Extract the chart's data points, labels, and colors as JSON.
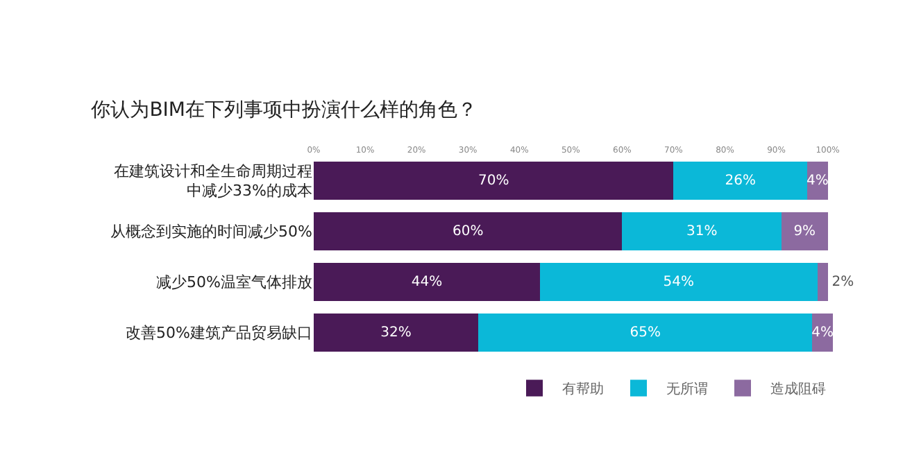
{
  "chart_data": {
    "type": "bar",
    "orientation": "horizontal",
    "stacked": true,
    "title": "你认为BIM在下列事项中扮演什么样的角色？",
    "categories": [
      "在建筑设计和全生命周期过程中减少33%的成本",
      "从概念到实施的时间减少50%",
      "减少50%温室气体排放",
      "改善50%建筑产品贸易缺口"
    ],
    "series": [
      {
        "name": "有帮助",
        "color": "#4a1a57",
        "values": [
          70,
          60,
          44,
          32
        ],
        "value_labels": [
          "70%",
          "60%",
          "44%",
          "32%"
        ]
      },
      {
        "name": "无所谓",
        "color": "#0bb8d8",
        "values": [
          26,
          31,
          54,
          65
        ],
        "value_labels": [
          "26%",
          "31%",
          "54%",
          "65%"
        ]
      },
      {
        "name": "造成阻碍",
        "color": "#8c6aa0",
        "values": [
          4,
          9,
          2,
          4
        ],
        "value_labels": [
          "4%",
          "9%",
          "2%",
          "4%"
        ]
      }
    ],
    "xlim": [
      0,
      101
    ],
    "xticks": [
      {
        "value": 0,
        "label": "0%"
      },
      {
        "value": 10,
        "label": "10%"
      },
      {
        "value": 20,
        "label": "20%"
      },
      {
        "value": 30,
        "label": "30%"
      },
      {
        "value": 40,
        "label": "40%"
      },
      {
        "value": 50,
        "label": "50%"
      },
      {
        "value": 60,
        "label": "60%"
      },
      {
        "value": 70,
        "label": "70%"
      },
      {
        "value": 80,
        "label": "80%"
      },
      {
        "value": 90,
        "label": "90%"
      },
      {
        "value": 100,
        "label": "100%"
      }
    ],
    "grid": false,
    "legend": "bottom right"
  }
}
